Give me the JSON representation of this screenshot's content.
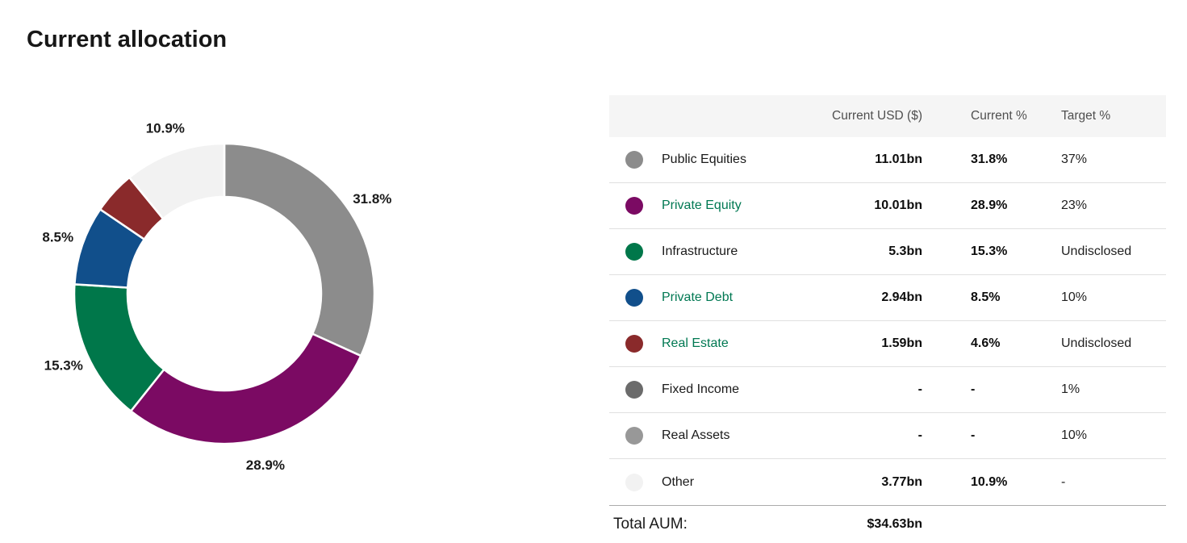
{
  "page": {
    "title": "Current allocation"
  },
  "chart_data": {
    "type": "donut",
    "title": "Current allocation",
    "start_angle_deg": 0,
    "direction": "clockwise",
    "label_format": "percent",
    "slices": [
      {
        "label": "Public Equities",
        "value": 31.8,
        "display": "31.8%",
        "color": "#8C8C8C",
        "show_label": true
      },
      {
        "label": "Private Equity",
        "value": 28.9,
        "display": "28.9%",
        "color": "#7B0A63",
        "show_label": true
      },
      {
        "label": "Infrastructure",
        "value": 15.3,
        "display": "15.3%",
        "color": "#00774A",
        "show_label": true
      },
      {
        "label": "Private Debt",
        "value": 8.5,
        "display": "8.5%",
        "color": "#114F8B",
        "show_label": true
      },
      {
        "label": "Real Estate",
        "value": 4.6,
        "display": "4.6%",
        "color": "#8A2A2B",
        "show_label": false
      },
      {
        "label": "Other",
        "value": 10.9,
        "display": "10.9%",
        "color": "#F2F2F2",
        "show_label": true
      }
    ]
  },
  "table": {
    "header": {
      "usd": "Current USD ($)",
      "current_pct": "Current %",
      "target_pct": "Target %"
    },
    "rows": [
      {
        "name": "Public Equities",
        "dot_color": "#8C8C8C",
        "usd": "11.01bn",
        "current_pct": "31.8%",
        "target_pct": "37%",
        "link": false
      },
      {
        "name": "Private Equity",
        "dot_color": "#7B0A63",
        "usd": "10.01bn",
        "current_pct": "28.9%",
        "target_pct": "23%",
        "link": true
      },
      {
        "name": "Infrastructure",
        "dot_color": "#00774A",
        "usd": "5.3bn",
        "current_pct": "15.3%",
        "target_pct": "Undisclosed",
        "link": false
      },
      {
        "name": "Private Debt",
        "dot_color": "#114F8B",
        "usd": "2.94bn",
        "current_pct": "8.5%",
        "target_pct": "10%",
        "link": true
      },
      {
        "name": "Real Estate",
        "dot_color": "#8A2A2B",
        "usd": "1.59bn",
        "current_pct": "4.6%",
        "target_pct": "Undisclosed",
        "link": true
      },
      {
        "name": "Fixed Income",
        "dot_color": "#6B6B6B",
        "usd": "-",
        "current_pct": "-",
        "target_pct": "1%",
        "link": false
      },
      {
        "name": "Real Assets",
        "dot_color": "#989898",
        "usd": "-",
        "current_pct": "-",
        "target_pct": "10%",
        "link": false
      },
      {
        "name": "Other",
        "dot_color": "#F2F2F2",
        "usd": "3.77bn",
        "current_pct": "10.9%",
        "target_pct": "-",
        "link": false
      }
    ],
    "footer": {
      "label": "Total AUM:",
      "value": "$34.63bn"
    }
  },
  "colors": {
    "link_green": "#007852",
    "header_bg": "#F5F5F5",
    "row_separator": "#e0e0e0",
    "total_separator": "#ababab"
  }
}
